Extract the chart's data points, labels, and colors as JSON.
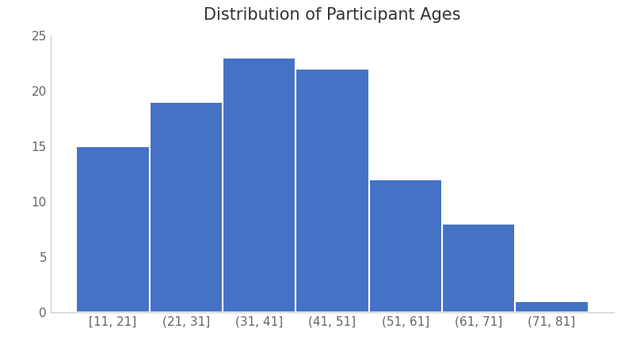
{
  "title": "Distribution of Participant Ages",
  "categories": [
    "[11, 21]",
    "(21, 31]",
    "(31, 41]",
    "(41, 51]",
    "(51, 61]",
    "(61, 71]",
    "(71, 81]"
  ],
  "values": [
    15,
    19,
    23,
    22,
    12,
    8,
    1
  ],
  "bar_color": "#4472C4",
  "ylim": [
    0,
    25
  ],
  "yticks": [
    0,
    5,
    10,
    15,
    20,
    25
  ],
  "title_fontsize": 15,
  "tick_fontsize": 11,
  "background_color": "#ffffff",
  "bar_edge_color": "#ffffff",
  "bar_linewidth": 1.5,
  "spine_color": "#d0d0d0",
  "tick_color": "#666666"
}
